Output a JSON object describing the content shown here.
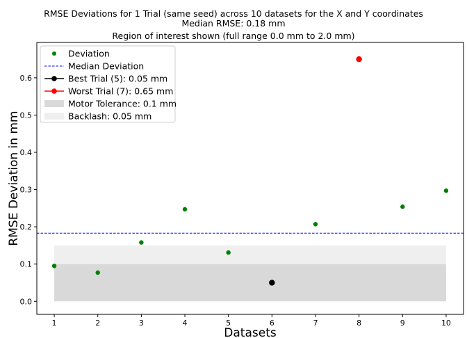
{
  "chart_data": {
    "type": "scatter",
    "title": "RMSE Deviations for 1 Trial (same seed) across 10 datasets for the X and Y coordinates",
    "subtitle": "Median RMSE: 0.18 mm",
    "subtitle2": "Region of interest shown (full range 0.0 mm to 2.0 mm)",
    "xlabel": "Datasets",
    "ylabel": "RMSE Deviation in mm",
    "xlim": [
      0.6,
      10.4
    ],
    "ylim": [
      -0.035,
      0.695
    ],
    "xticks": [
      1,
      2,
      3,
      4,
      5,
      6,
      7,
      8,
      9,
      10
    ],
    "yticks": [
      0.0,
      0.1,
      0.2,
      0.3,
      0.4,
      0.5,
      0.6
    ],
    "ytick_labels": [
      "0.0",
      "0.1",
      "0.2",
      "0.3",
      "0.4",
      "0.5",
      "0.6"
    ],
    "grid": false,
    "legend_position": "top-left",
    "x": [
      1,
      2,
      3,
      4,
      5,
      6,
      7,
      8,
      9,
      10
    ],
    "y": [
      0.095,
      0.077,
      0.158,
      0.247,
      0.131,
      0.05,
      0.207,
      0.65,
      0.254,
      0.297
    ],
    "median": 0.183,
    "best": {
      "x": 6,
      "y": 0.05
    },
    "worst": {
      "x": 8,
      "y": 0.65
    },
    "motor_tolerance_band": [
      0.0,
      0.1
    ],
    "backlash_band": [
      0.1,
      0.15
    ],
    "band_x_range": [
      1,
      10
    ],
    "legend": [
      {
        "label": "Deviation",
        "kind": "dot",
        "color": "#008000"
      },
      {
        "label": "Median Deviation",
        "kind": "dashed",
        "color": "#0000ff"
      },
      {
        "label": "Best Trial (5): 0.05 mm",
        "kind": "line-dot",
        "color": "#000000"
      },
      {
        "label": "Worst Trial (7): 0.65 mm",
        "kind": "line-dot",
        "color": "#ff0000"
      },
      {
        "label": "Motor Tolerance: 0.1 mm",
        "kind": "patch",
        "color": "#d9d9d9"
      },
      {
        "label": "Backlash: 0.05 mm",
        "kind": "patch",
        "color": "#efefef"
      }
    ],
    "colors": {
      "deviation": "#008000",
      "median": "#0000ff",
      "best": "#000000",
      "worst": "#ff0000",
      "motor": "#d9d9d9",
      "backlash": "#efefef"
    }
  }
}
